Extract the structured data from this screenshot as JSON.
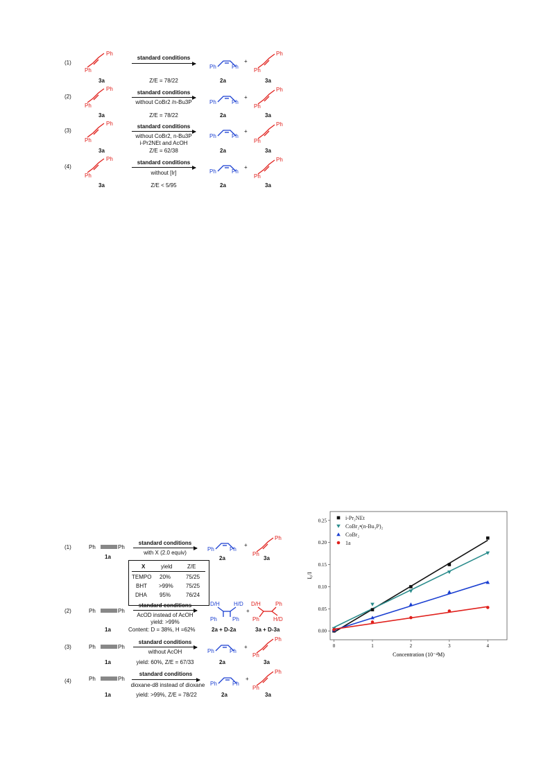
{
  "scheme1": {
    "rows": [
      {
        "num": "(1)",
        "sm_label": "3a",
        "cond_title": "standard conditions",
        "cond_lines": [],
        "ratio": "Z/E = 78/22",
        "p1_label": "2a",
        "plus": "+",
        "p2_label": "3a"
      },
      {
        "num": "(2)",
        "sm_label": "3a",
        "cond_title": "standard conditions",
        "cond_lines": [
          "without CoBr2 /n-Bu3P"
        ],
        "ratio": "Z/E = 78/22",
        "p1_label": "2a",
        "plus": "+",
        "p2_label": "3a"
      },
      {
        "num": "(3)",
        "sm_label": "3a",
        "cond_title": "standard conditions",
        "cond_lines": [
          "without CoBr2, n-Bu3P",
          "i-Pr2NEt and AcOH"
        ],
        "ratio": "Z/E = 62/38",
        "p1_label": "2a",
        "plus": "+",
        "p2_label": "3a"
      },
      {
        "num": "(4)",
        "sm_label": "3a",
        "cond_title": "standard conditions",
        "cond_lines": [
          "without [Ir]"
        ],
        "ratio": "Z/E < 5/95",
        "p1_label": "2a",
        "plus": "+",
        "p2_label": "3a"
      }
    ],
    "ph": "Ph"
  },
  "scheme2": {
    "ph": "Ph",
    "row1": {
      "num": "(1)",
      "sm_label": "1a",
      "cond_title": "standard conditions",
      "cond_line": "with X (2.0 equiv)",
      "p1_label": "2a",
      "plus": "+",
      "p2_label": "3a",
      "table": {
        "headers": [
          "X",
          "yield",
          "Z/E"
        ],
        "rows": [
          [
            "TEMPO",
            "20%",
            "75/25"
          ],
          [
            "BHT",
            ">99%",
            "75/25"
          ],
          [
            "DHA",
            "95%",
            "76/24"
          ]
        ]
      }
    },
    "row2": {
      "num": "(2)",
      "sm_label": "1a",
      "cond_title": "standard conditions",
      "cond_line": "AcOD instead of AcOH",
      "yield": "yield: >99%",
      "content": "Content: D = 38%, H =62%",
      "p1_label": "2a + D-2a",
      "plus": "+",
      "p2_label": "3a + D-3a",
      "dh": "D/H",
      "hd": "H/D"
    },
    "row3": {
      "num": "(3)",
      "sm_label": "1a",
      "cond_title": "standard conditions",
      "cond_line": "without AcOH",
      "yield": "yield: 60%, Z/E = 67/33",
      "p1_label": "2a",
      "plus": "+",
      "p2_label": "3a"
    },
    "row4": {
      "num": "(4)",
      "sm_label": "1a",
      "cond_title": "standard conditions",
      "cond_line": "dioxane-d8 instead of dioxane",
      "yield": "yield: >99%, Z/E = 78/22",
      "p1_label": "2a",
      "plus": "+",
      "p2_label": "3a"
    }
  },
  "colors": {
    "blue": "#1a3fd1",
    "red": "#e0201c",
    "black": "#111111",
    "teal": "#2a8c8c"
  },
  "chart_data": {
    "type": "scatter",
    "xlabel": "Concentration (10⁻⁴M)",
    "ylabel": "I₀/I",
    "xlim": [
      -0.1,
      4.5
    ],
    "ylim": [
      -0.02,
      0.27
    ],
    "xticks": [
      0,
      1,
      2,
      3,
      4
    ],
    "yticks": [
      0.0,
      0.05,
      0.1,
      0.15,
      0.2,
      0.25
    ],
    "legend_position": "top-left",
    "series": [
      {
        "name": "i-Pr₂NEt",
        "color": "#111111",
        "marker": "square",
        "x": [
          0,
          1,
          2,
          3,
          4
        ],
        "y": [
          0.0,
          0.048,
          0.1,
          0.15,
          0.21
        ]
      },
      {
        "name": "CoBr₂•(n-Bu₃P)₂",
        "color": "#2a8c8c",
        "marker": "triangle-down",
        "x": [
          0,
          1,
          2,
          3,
          4
        ],
        "y": [
          0.005,
          0.06,
          0.09,
          0.133,
          0.176
        ]
      },
      {
        "name": "CoBr₂",
        "color": "#1a3fd1",
        "marker": "triangle-up",
        "x": [
          0,
          1,
          2,
          3,
          4
        ],
        "y": [
          0.002,
          0.03,
          0.06,
          0.088,
          0.11
        ]
      },
      {
        "name": "1a",
        "color": "#e0201c",
        "marker": "circle",
        "x": [
          0,
          1,
          2,
          3,
          4
        ],
        "y": [
          0.003,
          0.02,
          0.03,
          0.045,
          0.053
        ]
      }
    ],
    "fits": [
      {
        "color": "#111111",
        "y0": -0.003,
        "y4": 0.205
      },
      {
        "color": "#2a8c8c",
        "y0": 0.008,
        "y4": 0.177
      },
      {
        "color": "#1a3fd1",
        "y0": 0.002,
        "y4": 0.111
      },
      {
        "color": "#e0201c",
        "y0": 0.004,
        "y4": 0.055
      }
    ]
  }
}
